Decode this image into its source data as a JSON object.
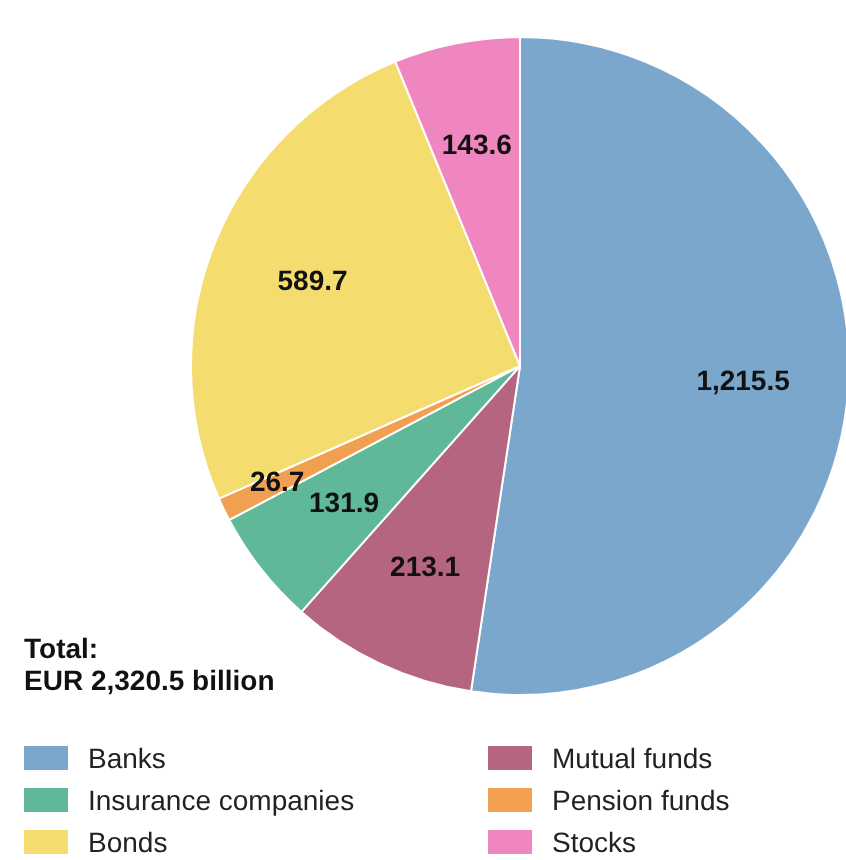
{
  "chart_data": {
    "type": "pie",
    "categories": [
      "Banks",
      "Mutual funds",
      "Insurance companies",
      "Pension funds",
      "Bonds",
      "Stocks"
    ],
    "values": [
      1215.5,
      213.1,
      131.9,
      26.7,
      589.7,
      143.6
    ],
    "colors": [
      "#7ba7cc",
      "#b5657f",
      "#5fb898",
      "#f0a050",
      "#f5dc6e",
      "#ef86c0"
    ],
    "data_labels": true,
    "value_labels": [
      "1,215.5",
      "213.1",
      "131.9",
      "26.7",
      "589.7",
      "143.6"
    ],
    "legend": "bottom",
    "annotations": [
      "Total:\nEUR 2,320.5 billion"
    ]
  }
}
